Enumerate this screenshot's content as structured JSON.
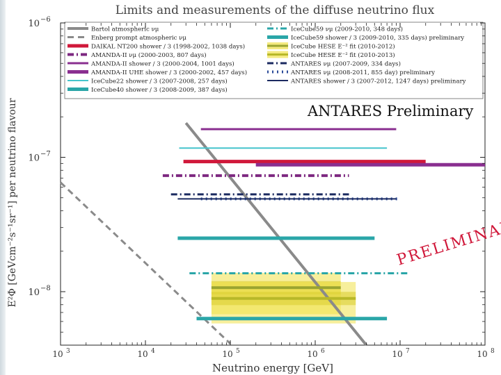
{
  "chart_data": {
    "type": "line",
    "title": "Limits and measurements of the diffuse neutrino flux",
    "xlabel": "Neutrino energy [GeV]",
    "ylabel": "E²Φ [GeVcm⁻²s⁻¹sr⁻¹] per neutrino flavour",
    "x_scale": "log",
    "y_scale": "log",
    "xlim": [
      1000,
      100000000
    ],
    "ylim": [
      4e-09,
      1e-06
    ],
    "x_ticks": [
      {
        "value": 1000,
        "base": "10",
        "exp": "3"
      },
      {
        "value": 10000,
        "base": "10",
        "exp": "4"
      },
      {
        "value": 100000,
        "base": "10",
        "exp": "5"
      },
      {
        "value": 1000000,
        "base": "10",
        "exp": "6"
      },
      {
        "value": 10000000,
        "base": "10",
        "exp": "7"
      },
      {
        "value": 100000000,
        "base": "10",
        "exp": "8"
      }
    ],
    "y_ticks": [
      {
        "value": 1e-08,
        "base": "10",
        "exp": "−8"
      },
      {
        "value": 1e-07,
        "base": "10",
        "exp": "−7"
      },
      {
        "value": 1e-06,
        "base": "10",
        "exp": "−6"
      }
    ],
    "annotations": {
      "preliminary_box": "ANTARES Preliminary",
      "watermark": "PRELIMINARY"
    },
    "legend_position": "top",
    "bands": [
      {
        "name": "IceCube HESE E⁻² fit (2010-2012)",
        "color": "#f0e14a",
        "x": [
          60000,
          2000000
        ],
        "y_low": 6.8e-09,
        "y_high": 1.38e-08,
        "y_center": 1.07e-08
      },
      {
        "name": "IceCube HESE E⁻² fit (2010-2013)",
        "color": "#f0e14a",
        "x": [
          60000,
          3000000
        ],
        "y_low": 5.8e-09,
        "y_high": 1.18e-08,
        "y_center": 8.9e-09
      }
    ],
    "series": [
      {
        "name": "Bartol atmospheric νμ",
        "color": "#8a8a8a",
        "style": "solid",
        "width": 4,
        "x": [
          30000,
          4000000
        ],
        "y": [
          1.8e-07,
          4e-09
        ]
      },
      {
        "name": "Enberg prompt atmospheric νμ",
        "color": "#8a8a8a",
        "style": "dash",
        "width": 3,
        "x": [
          1000,
          100000
        ],
        "y": [
          6.5e-08,
          4.1e-09
        ]
      },
      {
        "name": "DAIKAL NT200 shower / 3 (1998-2002, 1038 days)",
        "color": "#d0183a",
        "style": "solid",
        "width": 5,
        "x": [
          28000,
          20000000
        ],
        "y": [
          9.3e-08,
          9.3e-08
        ]
      },
      {
        "name": "AMANDA-II νμ (2000-2003, 807 days)",
        "color": "#7d2880",
        "style": "dashdot",
        "width": 4,
        "x": [
          16000,
          2500000
        ],
        "y": [
          7.3e-08,
          7.3e-08
        ]
      },
      {
        "name": "AMANDA-II shower / 3 (2000-2004, 1001 days)",
        "color": "#8a2f90",
        "style": "solid",
        "width": 3,
        "x": [
          45000,
          9000000
        ],
        "y": [
          1.62e-07,
          1.62e-07
        ]
      },
      {
        "name": "AMANDA-II UHE shower / 3 (2000-2002, 457 days)",
        "color": "#8a2f90",
        "style": "solid",
        "width": 5,
        "x": [
          200000,
          100000000
        ],
        "y": [
          8.8e-08,
          8.8e-08
        ]
      },
      {
        "name": "IceCube22 shower / 3 (2007-2008, 257 days)",
        "color": "#44c4cc",
        "style": "solid",
        "width": 2,
        "x": [
          25000,
          7000000
        ],
        "y": [
          1.17e-07,
          1.17e-07
        ]
      },
      {
        "name": "IceCube40 shower / 3 (2008-2009, 387 days)",
        "color": "#2aa6a8",
        "style": "solid",
        "width": 5,
        "x": [
          40000,
          7000000
        ],
        "y": [
          6.3e-09,
          6.3e-09
        ]
      },
      {
        "name": "IceCube59 νμ (2009-2010, 348 days)",
        "color": "#2aa6a8",
        "style": "dashdot",
        "width": 3,
        "x": [
          33000,
          13000000
        ],
        "y": [
          1.37e-08,
          1.37e-08
        ]
      },
      {
        "name": "IceCube59 shower / 3 (2009-2010, 335 days) preliminary",
        "color": "#2aa6a8",
        "style": "solid",
        "width": 5,
        "x": [
          24000,
          5000000
        ],
        "y": [
          2.5e-08,
          2.5e-08
        ]
      },
      {
        "name": "ANTARES νμ (2007-2009, 334 days)",
        "color": "#1b2a60",
        "style": "dashdot",
        "width": 3,
        "x": [
          20000,
          2500000
        ],
        "y": [
          5.3e-08,
          5.3e-08
        ]
      },
      {
        "name": "ANTARES νμ (2008-2011, 855 day) preliminary",
        "color": "#2c4c9a",
        "style": "dot",
        "width": 4,
        "x": [
          45000,
          10000000
        ],
        "y": [
          4.9e-08,
          4.9e-08
        ]
      },
      {
        "name": "ANTARES shower / 3 (2007-2012, 1247 days) preliminary",
        "color": "#1b2a60",
        "style": "solid",
        "width": 2,
        "x": [
          24000,
          9000000
        ],
        "y": [
          4.9e-08,
          4.9e-08
        ]
      },
      {
        "name": "IceCube HESE E⁻² fit (2010-2012)",
        "color": "#9aa430",
        "style": "solid",
        "width": 4,
        "x": [
          60000,
          2000000
        ],
        "y": [
          1.07e-08,
          1.07e-08
        ]
      },
      {
        "name": "IceCube HESE E⁻² fit (2010-2013)",
        "color": "#b8b828",
        "style": "solid",
        "width": 4,
        "x": [
          60000,
          3000000
        ],
        "y": [
          8.9e-09,
          8.9e-09
        ]
      }
    ],
    "legend": {
      "col1": [
        {
          "label": "Bartol atmospheric νμ",
          "color": "#8a8a8a",
          "kind": "solid",
          "w": 4
        },
        {
          "label": "Enberg prompt atmospheric νμ",
          "color": "#8a8a8a",
          "kind": "dash",
          "w": 3
        },
        {
          "label": "DAIKAL NT200 shower / 3 (1998-2002, 1038 days)",
          "color": "#d0183a",
          "kind": "solid",
          "w": 5
        },
        {
          "label": "AMANDA-II νμ (2000-2003, 807 days)",
          "color": "#7d2880",
          "kind": "dashdot",
          "w": 4
        },
        {
          "label": "AMANDA-II shower / 3 (2000-2004, 1001 days)",
          "color": "#8a2f90",
          "kind": "solid",
          "w": 3
        },
        {
          "label": "AMANDA-II UHE shower / 3 (2000-2002, 457 days)",
          "color": "#8a2f90",
          "kind": "solid",
          "w": 5
        },
        {
          "label": "IceCube22 shower / 3 (2007-2008, 257 days)",
          "color": "#44c4cc",
          "kind": "solid",
          "w": 2
        },
        {
          "label": "IceCube40 shower / 3 (2008-2009, 387 days)",
          "color": "#2aa6a8",
          "kind": "solid",
          "w": 5
        }
      ],
      "col2": [
        {
          "label": "IceCube59 νμ (2009-2010, 348 days)",
          "color": "#2aa6a8",
          "kind": "dashdot",
          "w": 3
        },
        {
          "label": "IceCube59 shower / 3 (2009-2010, 335 days) preliminary",
          "color": "#2aa6a8",
          "kind": "solid",
          "w": 5
        },
        {
          "label": "IceCube HESE E⁻² fit (2010-2012)",
          "color": "#9aa430",
          "kind": "band",
          "w": 4
        },
        {
          "label": "IceCube HESE E⁻² fit (2010-2013)",
          "color": "#b8b828",
          "kind": "band",
          "w": 4
        },
        {
          "label": "ANTARES νμ (2007-2009, 334 days)",
          "color": "#1b2a60",
          "kind": "dashdot",
          "w": 3
        },
        {
          "label": "ANTARES νμ (2008-2011, 855 day) preliminary",
          "color": "#2c4c9a",
          "kind": "dot",
          "w": 4
        },
        {
          "label": "ANTARES shower / 3 (2007-2012, 1247 days) preliminary",
          "color": "#1b2a60",
          "kind": "solid",
          "w": 2
        }
      ]
    }
  }
}
